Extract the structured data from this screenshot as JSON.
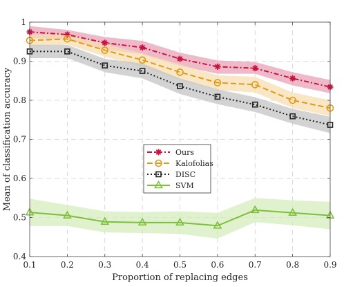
{
  "chart_data": {
    "type": "line",
    "xlabel": "Proportion of replacing edges",
    "ylabel": "Mean of classification accuracy",
    "xlim": [
      0.1,
      0.9
    ],
    "ylim": [
      0.4,
      1.0
    ],
    "xticks": [
      "0.1",
      "0.2",
      "0.3",
      "0.4",
      "0.5",
      "0.6",
      "0.7",
      "0.8",
      "0.9"
    ],
    "yticks": [
      "0.4",
      "0.5",
      "0.6",
      "0.7",
      "0.8",
      "0.9",
      "1"
    ],
    "grid": true,
    "legend_position": "center",
    "x": [
      0.1,
      0.2,
      0.3,
      0.4,
      0.5,
      0.6,
      0.7,
      0.8,
      0.9
    ],
    "series": [
      {
        "name": "Ours",
        "color": "#c8123f",
        "band_color": "#e8a3b7",
        "line_style": "dash-dot",
        "marker": "asterisk",
        "values": [
          0.975,
          0.968,
          0.947,
          0.935,
          0.906,
          0.886,
          0.882,
          0.856,
          0.834
        ],
        "lower": [
          0.96,
          0.955,
          0.93,
          0.918,
          0.888,
          0.868,
          0.868,
          0.838,
          0.818
        ],
        "upper": [
          0.99,
          0.98,
          0.962,
          0.952,
          0.922,
          0.902,
          0.898,
          0.872,
          0.852
        ]
      },
      {
        "name": "Kalofolias",
        "color": "#e09a18",
        "band_color": "#f5deb0",
        "line_style": "dashed",
        "marker": "circle",
        "values": [
          0.953,
          0.957,
          0.928,
          0.903,
          0.872,
          0.845,
          0.84,
          0.8,
          0.78
        ],
        "lower": [
          0.938,
          0.943,
          0.912,
          0.885,
          0.852,
          0.826,
          0.82,
          0.78,
          0.76
        ],
        "upper": [
          0.968,
          0.971,
          0.944,
          0.92,
          0.892,
          0.864,
          0.86,
          0.82,
          0.8
        ]
      },
      {
        "name": "DISC",
        "color": "#222222",
        "band_color": "#c4c4c4",
        "line_style": "dotted",
        "marker": "square",
        "values": [
          0.925,
          0.925,
          0.889,
          0.875,
          0.836,
          0.809,
          0.789,
          0.759,
          0.737
        ],
        "lower": [
          0.908,
          0.908,
          0.872,
          0.856,
          0.816,
          0.79,
          0.77,
          0.74,
          0.716
        ],
        "upper": [
          0.942,
          0.942,
          0.906,
          0.894,
          0.856,
          0.828,
          0.808,
          0.778,
          0.758
        ]
      },
      {
        "name": "SVM",
        "color": "#7cbf3a",
        "band_color": "#d6eebc",
        "line_style": "solid",
        "marker": "triangle",
        "values": [
          0.513,
          0.505,
          0.489,
          0.487,
          0.487,
          0.479,
          0.519,
          0.512,
          0.505
        ],
        "lower": [
          0.478,
          0.478,
          0.462,
          0.46,
          0.458,
          0.446,
          0.488,
          0.48,
          0.47
        ],
        "upper": [
          0.548,
          0.532,
          0.516,
          0.514,
          0.516,
          0.512,
          0.55,
          0.544,
          0.54
        ]
      }
    ]
  }
}
